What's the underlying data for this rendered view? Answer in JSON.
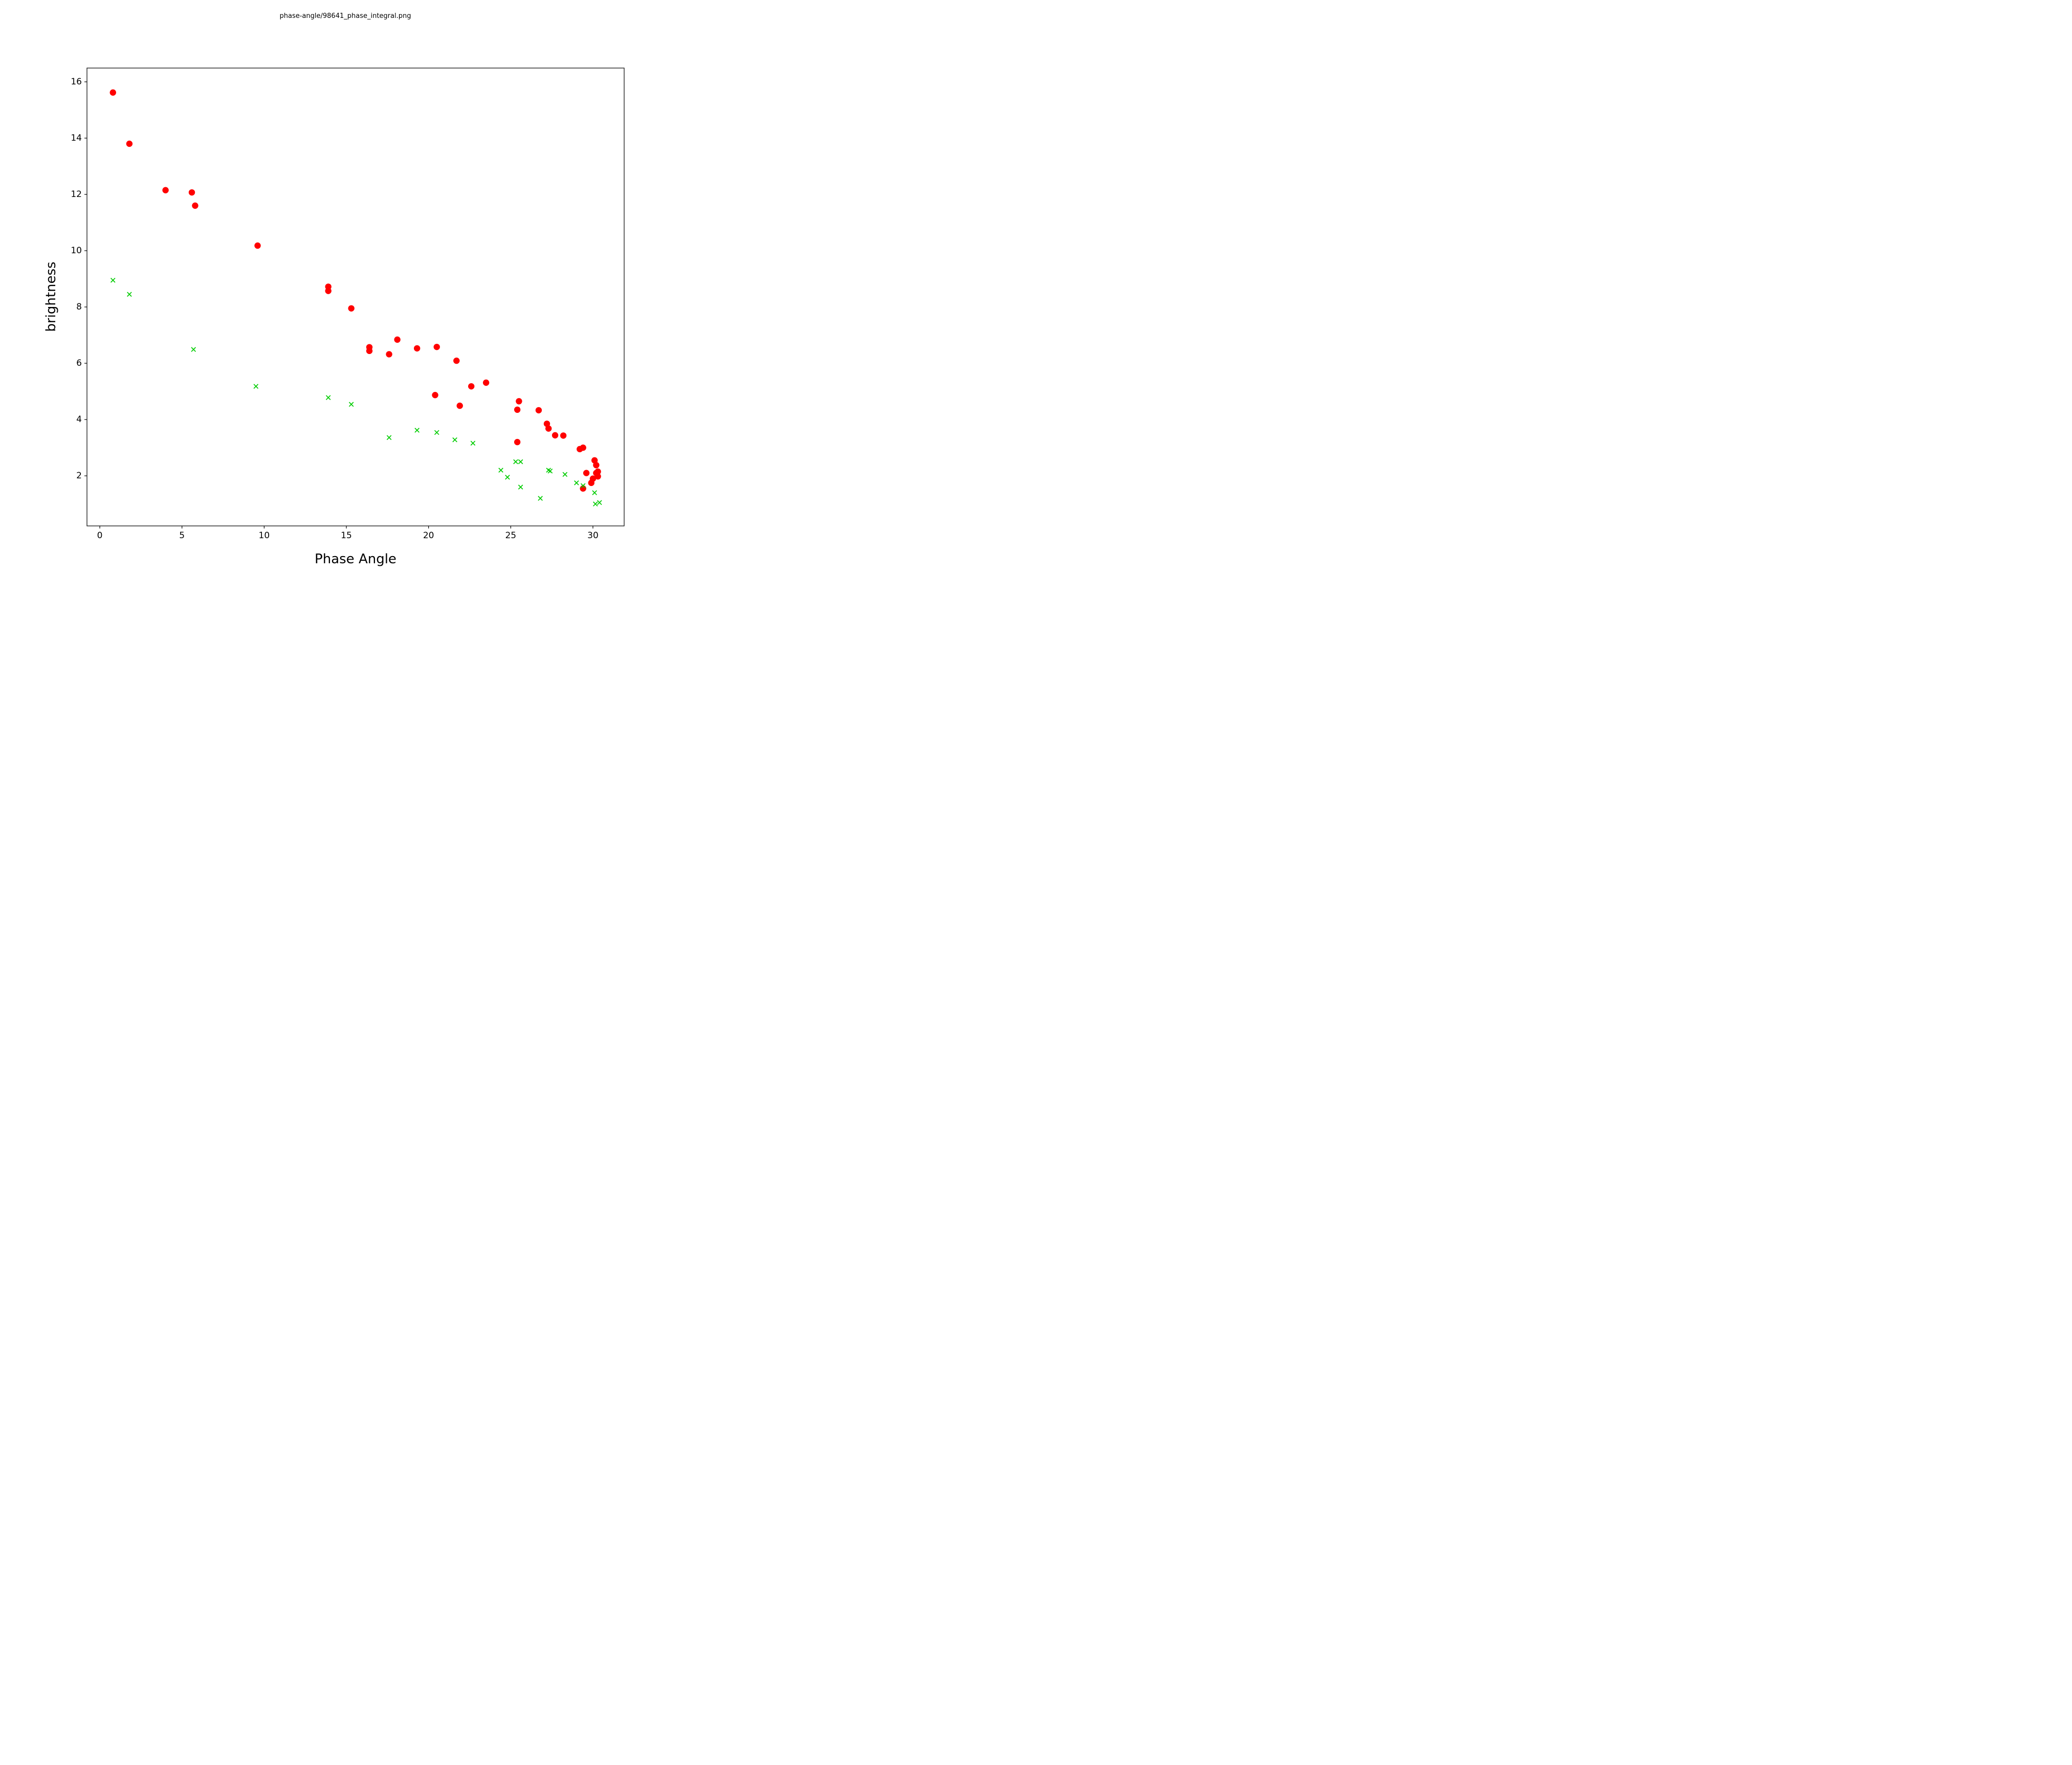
{
  "figure": {
    "title": "phase-angle/98641_phase_integral.png"
  },
  "chart_data": {
    "type": "scatter",
    "title": "phase-angle/98641_phase_integral.png",
    "xlabel": "Phase Angle",
    "ylabel": "brightness",
    "xlim": [
      -0.78,
      31.9
    ],
    "ylim": [
      0.22,
      16.49
    ],
    "x_ticks": [
      0,
      5,
      10,
      15,
      20,
      25,
      30
    ],
    "y_ticks": [
      2,
      4,
      6,
      8,
      10,
      12,
      14,
      16
    ],
    "grid": false,
    "legend": "none",
    "colors": {
      "series1": "#ff0000",
      "series2": "#00cc00"
    },
    "series": [
      {
        "name": "red-circles",
        "marker": "circle",
        "color": "#ff0000",
        "points": [
          [
            0.8,
            15.62
          ],
          [
            1.8,
            13.8
          ],
          [
            4.0,
            12.15
          ],
          [
            5.6,
            12.07
          ],
          [
            5.8,
            11.6
          ],
          [
            9.6,
            10.18
          ],
          [
            13.9,
            8.72
          ],
          [
            13.9,
            8.57
          ],
          [
            15.3,
            7.95
          ],
          [
            16.4,
            6.57
          ],
          [
            16.4,
            6.44
          ],
          [
            17.6,
            6.32
          ],
          [
            18.1,
            6.84
          ],
          [
            19.3,
            6.53
          ],
          [
            20.5,
            6.58
          ],
          [
            20.4,
            4.87
          ],
          [
            21.7,
            6.09
          ],
          [
            21.9,
            4.49
          ],
          [
            22.6,
            5.18
          ],
          [
            23.5,
            5.31
          ],
          [
            25.4,
            4.35
          ],
          [
            25.5,
            4.65
          ],
          [
            25.4,
            3.2
          ],
          [
            26.7,
            4.33
          ],
          [
            27.2,
            3.85
          ],
          [
            27.3,
            3.68
          ],
          [
            27.7,
            3.44
          ],
          [
            28.2,
            3.43
          ],
          [
            29.2,
            2.95
          ],
          [
            29.4,
            3.0
          ],
          [
            29.4,
            1.55
          ],
          [
            29.6,
            2.1
          ],
          [
            29.9,
            1.75
          ],
          [
            30.0,
            1.9
          ],
          [
            30.1,
            2.55
          ],
          [
            30.2,
            2.38
          ],
          [
            30.2,
            2.1
          ],
          [
            30.3,
            2.15
          ],
          [
            30.3,
            1.98
          ]
        ]
      },
      {
        "name": "green-x",
        "marker": "x",
        "color": "#00cc00",
        "points": [
          [
            0.8,
            8.95
          ],
          [
            1.8,
            8.45
          ],
          [
            5.7,
            6.49
          ],
          [
            9.5,
            5.18
          ],
          [
            13.9,
            4.78
          ],
          [
            15.3,
            4.54
          ],
          [
            17.6,
            3.36
          ],
          [
            19.3,
            3.62
          ],
          [
            20.5,
            3.54
          ],
          [
            21.6,
            3.28
          ],
          [
            22.7,
            3.16
          ],
          [
            24.4,
            2.2
          ],
          [
            24.8,
            1.95
          ],
          [
            25.3,
            2.5
          ],
          [
            25.6,
            2.5
          ],
          [
            25.6,
            1.6
          ],
          [
            26.8,
            1.2
          ],
          [
            27.3,
            2.2
          ],
          [
            27.4,
            2.17
          ],
          [
            28.3,
            2.05
          ],
          [
            29.0,
            1.75
          ],
          [
            29.4,
            1.65
          ],
          [
            30.1,
            1.4
          ],
          [
            30.15,
            1.0
          ],
          [
            30.4,
            1.05
          ]
        ]
      }
    ]
  }
}
